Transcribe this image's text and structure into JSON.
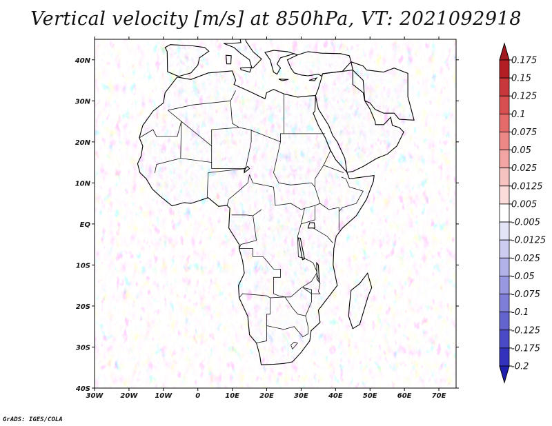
{
  "title": "Vertical velocity [m/s] at 850hPa, VT: 2021092918",
  "credit": "GrADS: IGES/COLA",
  "map": {
    "lon_range": [
      -30,
      75
    ],
    "lat_range": [
      -40,
      45
    ],
    "lon_ticks": [
      "30W",
      "20W",
      "10W",
      "0",
      "10E",
      "20E",
      "30E",
      "40E",
      "50E",
      "60E",
      "70E"
    ],
    "lon_tick_values": [
      -30,
      -20,
      -10,
      0,
      10,
      20,
      30,
      40,
      50,
      60,
      70
    ],
    "lat_ticks": [
      "40N",
      "30N",
      "20N",
      "10N",
      "EQ",
      "10S",
      "20S",
      "30S",
      "40S"
    ],
    "lat_tick_values": [
      40,
      30,
      20,
      10,
      0,
      -10,
      -20,
      -30,
      -40
    ]
  },
  "colorbar": {
    "labels": [
      "0.175",
      "0.15",
      "0.125",
      "0.1",
      "0.075",
      "0.05",
      "0.025",
      "0.0125",
      "0.005",
      "-0.005",
      "-0.0125",
      "-0.025",
      "-0.05",
      "-0.075",
      "-0.1",
      "-0.125",
      "-0.175",
      "-0.2"
    ],
    "colors": [
      "#b21e24",
      "#c8373a",
      "#d84f50",
      "#e46b69",
      "#ec8886",
      "#f2a5a2",
      "#f7c3c0",
      "#fbdcda",
      "#ffffff",
      "#e4e4f7",
      "#ccccf0",
      "#b2b2e8",
      "#9898e0",
      "#7e7ed8",
      "#6464cf",
      "#4a4ac6",
      "#3232bc"
    ],
    "top_color": "#a31a20",
    "bottom_color": "#2020b0"
  },
  "chart_data": {
    "type": "heatmap",
    "title": "Vertical velocity [m/s] at 850hPa, VT: 2021092918",
    "variable": "Vertical velocity",
    "units": "m/s",
    "level": "850hPa",
    "valid_time": "2021092918",
    "x_range": [
      -30,
      75
    ],
    "y_range": [
      -40,
      45
    ],
    "contour_levels": [
      -0.2,
      -0.175,
      -0.125,
      -0.1,
      -0.075,
      -0.05,
      -0.025,
      -0.0125,
      -0.005,
      0.005,
      0.0125,
      0.025,
      0.05,
      0.075,
      0.1,
      0.125,
      0.15,
      0.175
    ]
  }
}
